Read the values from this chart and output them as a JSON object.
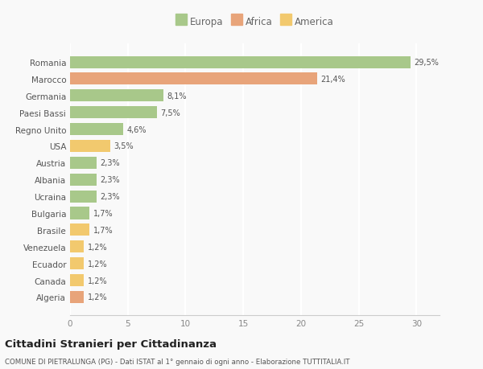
{
  "categories": [
    "Algeria",
    "Canada",
    "Ecuador",
    "Venezuela",
    "Brasile",
    "Bulgaria",
    "Ucraina",
    "Albania",
    "Austria",
    "USA",
    "Regno Unito",
    "Paesi Bassi",
    "Germania",
    "Marocco",
    "Romania"
  ],
  "values": [
    1.2,
    1.2,
    1.2,
    1.2,
    1.7,
    1.7,
    2.3,
    2.3,
    2.3,
    3.5,
    4.6,
    7.5,
    8.1,
    21.4,
    29.5
  ],
  "labels": [
    "1,2%",
    "1,2%",
    "1,2%",
    "1,2%",
    "1,7%",
    "1,7%",
    "2,3%",
    "2,3%",
    "2,3%",
    "3,5%",
    "4,6%",
    "7,5%",
    "8,1%",
    "21,4%",
    "29,5%"
  ],
  "colors": [
    "#e8a47a",
    "#f2c96e",
    "#f2c96e",
    "#f2c96e",
    "#f2c96e",
    "#a8c88a",
    "#a8c88a",
    "#a8c88a",
    "#a8c88a",
    "#f2c96e",
    "#a8c88a",
    "#a8c88a",
    "#a8c88a",
    "#e8a47a",
    "#a8c88a"
  ],
  "legend": {
    "Europa": "#a8c88a",
    "Africa": "#e8a47a",
    "America": "#f2c96e"
  },
  "title": "Cittadini Stranieri per Cittadinanza",
  "subtitle": "COMUNE DI PIETRALUNGA (PG) - Dati ISTAT al 1° gennaio di ogni anno - Elaborazione TUTTITALIA.IT",
  "xlim": [
    0,
    32
  ],
  "xticks": [
    0,
    5,
    10,
    15,
    20,
    25,
    30
  ],
  "background_color": "#f9f9f9",
  "bar_height": 0.72,
  "grid_color": "#ffffff",
  "spine_color": "#cccccc"
}
